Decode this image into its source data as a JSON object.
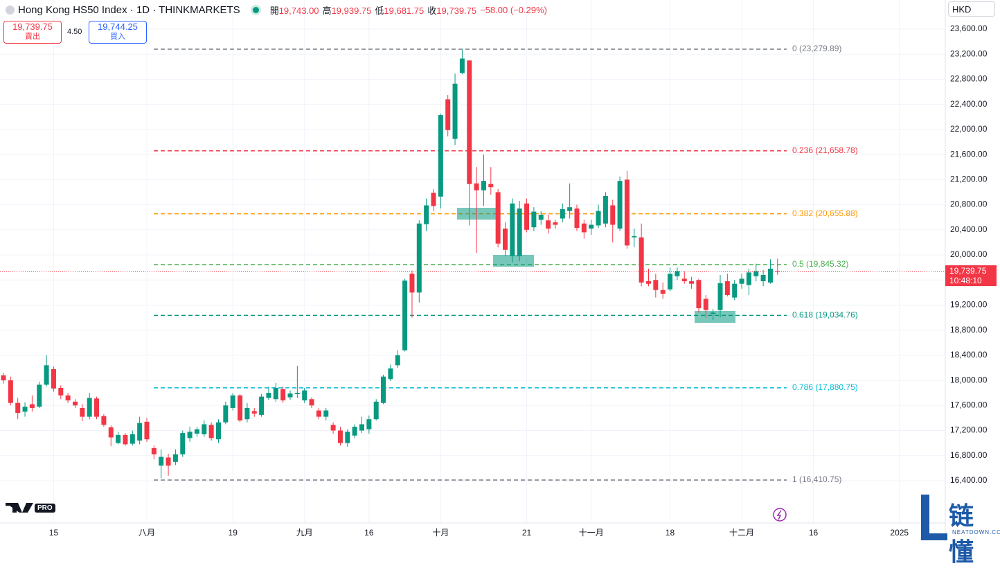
{
  "chart_data": {
    "type": "candlestick",
    "title": "Hong Kong HS50 Index · 1D · THINKMARKETS",
    "header": [
      {
        "label": "開",
        "value": "19,743.00"
      },
      {
        "label": "高",
        "value": "19,939.75"
      },
      {
        "label": "低",
        "value": "19,681.75"
      },
      {
        "label": "收",
        "value": "19,739.75"
      }
    ],
    "change": "−58.00 (−0.29%)",
    "sell": {
      "price": "19,739.75",
      "label": "賣出"
    },
    "spread": "4.50",
    "buy": {
      "price": "19,744.25",
      "label": "買入"
    },
    "currency": "HKD",
    "logo": "PRO",
    "watermark": {
      "name": "链懂",
      "site": "NEATDOWN.COM"
    },
    "up_color": "#089981",
    "down_color": "#f23645",
    "grid": true,
    "categories": [
      null,
      null,
      null,
      null,
      null,
      null,
      null,
      "15",
      null,
      null,
      null,
      null,
      null,
      null,
      null,
      null,
      null,
      null,
      null,
      null,
      "八月",
      null,
      null,
      null,
      null,
      null,
      null,
      null,
      null,
      null,
      null,
      null,
      "19",
      null,
      null,
      null,
      null,
      null,
      null,
      null,
      null,
      null,
      "九月",
      null,
      null,
      null,
      null,
      null,
      null,
      null,
      null,
      "16",
      null,
      null,
      null,
      null,
      null,
      null,
      null,
      null,
      null,
      "十月",
      null,
      null,
      null,
      null,
      null,
      null,
      null,
      null,
      null,
      null,
      null,
      "21",
      null,
      null,
      null,
      null,
      null,
      null,
      null,
      null,
      "十一月",
      null,
      null,
      null,
      null,
      null,
      null,
      null,
      null,
      null,
      null,
      "18",
      null,
      null,
      null,
      null,
      null,
      null,
      null,
      null,
      null,
      "十二月",
      null,
      null,
      null,
      null,
      null,
      null,
      null,
      null,
      null,
      "16",
      null,
      null,
      null,
      null,
      null,
      null,
      null,
      null,
      null,
      null,
      null,
      "2025"
    ],
    "open": [
      18080,
      18000,
      17640,
      17500,
      17620,
      17580,
      17930,
      18180,
      17880,
      17760,
      17660,
      17560,
      17420,
      17710,
      17430,
      17250,
      17000,
      17130,
      16990,
      17040,
      17340,
      16920,
      16640,
      16770,
      16700,
      16820,
      17080,
      17150,
      17140,
      17290,
      17060,
      17330,
      17560,
      17760,
      17380,
      17510,
      17450,
      17720,
      17700,
      17860,
      17730,
      17780,
      17680,
      17700,
      17520,
      17420,
      17290,
      17200,
      17000,
      17120,
      17200,
      17220,
      17380,
      17640,
      18020,
      18240,
      18480,
      19700,
      19400,
      20490,
      20990,
      20930,
      22480,
      21850,
      22900,
      23100,
      21140,
      21030,
      21130,
      21000,
      20420,
      19980,
      19980,
      20820,
      20440,
      20560,
      20550,
      20520,
      20580,
      20700,
      20740,
      20500,
      20420,
      20470,
      20500,
      20790,
      20420,
      21200,
      20280,
      20280,
      19580,
      19600,
      19440,
      19450,
      19660,
      19620,
      19580,
      19600,
      19300,
      19060,
      19120,
      19580,
      19320,
      19540,
      19520,
      19660,
      19580,
      19560,
      19743,
      null,
      null,
      null,
      null,
      null,
      null,
      null,
      null,
      null,
      null,
      null,
      null,
      null,
      null,
      null,
      null,
      null
    ],
    "high": [
      18120,
      18060,
      17720,
      17650,
      17760,
      17980,
      18400,
      18220,
      17920,
      17800,
      17700,
      17620,
      17800,
      17740,
      17460,
      17280,
      17180,
      17160,
      17200,
      17420,
      17400,
      16960,
      16900,
      16830,
      16900,
      17200,
      17260,
      17260,
      17360,
      17330,
      17380,
      17660,
      17800,
      17780,
      17640,
      17560,
      17780,
      17900,
      17960,
      17900,
      17840,
      18230,
      17880,
      17730,
      17560,
      17560,
      17330,
      17260,
      17220,
      17300,
      17420,
      17440,
      17700,
      18090,
      18250,
      18480,
      19620,
      19750,
      20550,
      20900,
      21050,
      22250,
      22550,
      22890,
      23280,
      23100,
      21400,
      21600,
      21400,
      21050,
      20520,
      20900,
      20860,
      20900,
      20760,
      20700,
      20640,
      20560,
      20820,
      21140,
      20800,
      20560,
      20560,
      20800,
      21000,
      20880,
      21250,
      21340,
      20420,
      20500,
      19780,
      19700,
      19560,
      19800,
      19800,
      19740,
      19650,
      19620,
      19360,
      19140,
      19680,
      19700,
      19600,
      19700,
      19780,
      19860,
      19760,
      19930,
      19939.75,
      null,
      null,
      null,
      null,
      null,
      null,
      null,
      null,
      null,
      null,
      null,
      null,
      null,
      null,
      null,
      null,
      null
    ],
    "low": [
      17950,
      17600,
      17380,
      17420,
      17500,
      17560,
      17900,
      17820,
      17700,
      17640,
      17560,
      17350,
      17380,
      17380,
      17260,
      16950,
      16980,
      16960,
      16960,
      16980,
      17020,
      16740,
      16440,
      16480,
      16650,
      16780,
      17020,
      17100,
      17100,
      17040,
      17000,
      17300,
      17520,
      17330,
      17330,
      17420,
      17420,
      17690,
      17660,
      17640,
      17690,
      17720,
      17640,
      17560,
      17380,
      17360,
      17150,
      16960,
      16940,
      17080,
      17160,
      17150,
      17360,
      17620,
      17990,
      18200,
      18460,
      19000,
      19240,
      20380,
      20700,
      20740,
      21890,
      21750,
      22880,
      20470,
      20030,
      20780,
      20960,
      20120,
      19980,
      19880,
      19900,
      20360,
      20380,
      20480,
      20340,
      20420,
      20520,
      20580,
      20380,
      20260,
      20320,
      20430,
      20440,
      20200,
      20380,
      20100,
      20120,
      19500,
      19500,
      19320,
      19300,
      19420,
      19600,
      19540,
      19460,
      19080,
      19000,
      18960,
      19000,
      19340,
      19280,
      19460,
      19360,
      19580,
      19500,
      19540,
      19681.75,
      null,
      null,
      null,
      null,
      null,
      null,
      null,
      null,
      null,
      null,
      null,
      null,
      null,
      null,
      null,
      null,
      null
    ],
    "close": [
      18000,
      17640,
      17480,
      17580,
      17560,
      17930,
      18240,
      17870,
      17760,
      17680,
      17600,
      17420,
      17720,
      17420,
      17290,
      17090,
      17130,
      16980,
      17140,
      17320,
      17060,
      16820,
      16780,
      16640,
      16820,
      17160,
      17180,
      17220,
      17300,
      17080,
      17330,
      17600,
      17760,
      17360,
      17560,
      17470,
      17740,
      17800,
      17880,
      17680,
      17790,
      17800,
      17840,
      17600,
      17420,
      17520,
      17200,
      17000,
      17180,
      17260,
      17300,
      17380,
      17660,
      18060,
      18190,
      18400,
      19590,
      19400,
      20500,
      20790,
      20780,
      22230,
      21990,
      22730,
      23130,
      21130,
      21030,
      21180,
      21080,
      20180,
      20080,
      20820,
      20740,
      20400,
      20690,
      20640,
      20420,
      20480,
      20730,
      20760,
      20430,
      20360,
      20480,
      20700,
      20940,
      20480,
      21180,
      20150,
      20300,
      19560,
      19540,
      19440,
      19380,
      19700,
      19740,
      19580,
      19540,
      19150,
      19120,
      19080,
      19550,
      19360,
      19540,
      19620,
      19720,
      19740,
      19680,
      19780,
      19739.75,
      null,
      null,
      null,
      null,
      null,
      null,
      null,
      null,
      null,
      null,
      null,
      null,
      null,
      null,
      null,
      null,
      null
    ],
    "ylim": [
      15726,
      24064
    ],
    "yticks": [
      {
        "value": 16400,
        "label": "16,400.00"
      },
      {
        "value": 16800,
        "label": "16,800.00"
      },
      {
        "value": 17200,
        "label": "17,200.00"
      },
      {
        "value": 17600,
        "label": "17,600.00"
      },
      {
        "value": 18000,
        "label": "18,000.00"
      },
      {
        "value": 18400,
        "label": "18,400.00"
      },
      {
        "value": 18800,
        "label": "18,800.00"
      },
      {
        "value": 19200,
        "label": "19,200.00"
      },
      {
        "value": 19600,
        "label": "19,600.00"
      },
      {
        "value": 20000,
        "label": "20,000.00"
      },
      {
        "value": 20400,
        "label": "20,400.00"
      },
      {
        "value": 20800,
        "label": "20,800.00"
      },
      {
        "value": 21200,
        "label": "21,200.00"
      },
      {
        "value": 21600,
        "label": "21,600.00"
      },
      {
        "value": 22000,
        "label": "22,000.00"
      },
      {
        "value": 22400,
        "label": "22,400.00"
      },
      {
        "value": 22800,
        "label": "22,800.00"
      },
      {
        "value": 23200,
        "label": "23,200.00"
      },
      {
        "value": 23600,
        "label": "23,600.00"
      }
    ],
    "fib_levels": [
      {
        "value": 23279.89,
        "label": "0 (23,279.89)",
        "color": "#787b86"
      },
      {
        "value": 21658.78,
        "label": "0.236 (21,658.78)",
        "color": "#f23645"
      },
      {
        "value": 20655.88,
        "label": "0.382 (20,655.88)",
        "color": "#ff9800"
      },
      {
        "value": 19845.32,
        "label": "0.5 (19,845.32)",
        "color": "#4caf50"
      },
      {
        "value": 19034.76,
        "label": "0.618 (19,034.76)",
        "color": "#089981"
      },
      {
        "value": 17880.75,
        "label": "0.786 (17,880.75)",
        "color": "#00bcd4"
      },
      {
        "value": 16410.75,
        "label": "1 (16,410.75)",
        "color": "#787b86"
      }
    ],
    "last_price": {
      "value": 19739.75,
      "label": "19,739.75"
    },
    "countdown": "10:48:10"
  }
}
